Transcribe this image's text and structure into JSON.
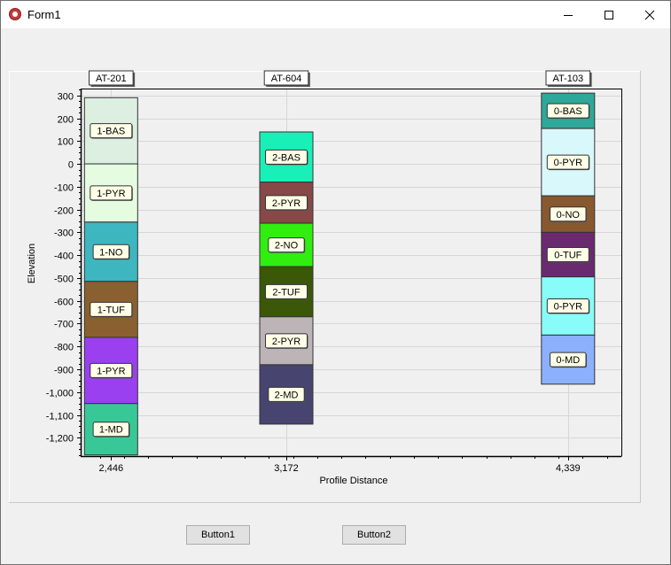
{
  "window": {
    "title": "Form1"
  },
  "buttons": {
    "button1": "Button1",
    "button2": "Button2"
  },
  "chart_data": {
    "type": "bar",
    "xlabel": "Profile Distance",
    "ylabel": "Elevation",
    "ylim": [
      -1280,
      330
    ],
    "yticks": [
      300,
      200,
      100,
      0,
      -100,
      -200,
      -300,
      -400,
      -500,
      -600,
      -700,
      -800,
      -900,
      -1000,
      -1100,
      -1200
    ],
    "ytick_labels": [
      "300",
      "200",
      "100",
      "0",
      "-100",
      "-200",
      "-300",
      "-400",
      "-500",
      "-600",
      "-700",
      "-800",
      "-900",
      "-1,000",
      "-1,100",
      "-1,200"
    ],
    "xlim": [
      2320,
      4560
    ],
    "columns": [
      {
        "well": "AT-201",
        "distance": 2446,
        "distance_label": "2,446",
        "layers": [
          {
            "label": "1-BAS",
            "top": 290,
            "bottom": 0,
            "color": "#dcefe0"
          },
          {
            "label": "1-PYR",
            "top": 0,
            "bottom": -255,
            "color": "#e6fce0"
          },
          {
            "label": "1-NO",
            "top": -255,
            "bottom": -515,
            "color": "#3db6c0"
          },
          {
            "label": "1-TUF",
            "top": -515,
            "bottom": -760,
            "color": "#8a6030"
          },
          {
            "label": "1-PYR",
            "top": -760,
            "bottom": -1050,
            "color": "#9a40f0"
          },
          {
            "label": "1-MD",
            "top": -1050,
            "bottom": -1275,
            "color": "#38c898"
          }
        ]
      },
      {
        "well": "AT-604",
        "distance": 3172,
        "distance_label": "3,172",
        "layers": [
          {
            "label": "2-BAS",
            "top": 140,
            "bottom": -80,
            "color": "#18f0b8"
          },
          {
            "label": "2-PYR",
            "top": -80,
            "bottom": -260,
            "color": "#884848"
          },
          {
            "label": "2-NO",
            "top": -260,
            "bottom": -450,
            "color": "#30ee10"
          },
          {
            "label": "2-TUF",
            "top": -450,
            "bottom": -670,
            "color": "#3a5808"
          },
          {
            "label": "2-PYR",
            "top": -670,
            "bottom": -880,
            "color": "#bdb4b8"
          },
          {
            "label": "2-MD",
            "top": -880,
            "bottom": -1140,
            "color": "#484470"
          }
        ]
      },
      {
        "well": "AT-103",
        "distance": 4339,
        "distance_label": "4,339",
        "layers": [
          {
            "label": "0-BAS",
            "top": 310,
            "bottom": 155,
            "color": "#2ea898"
          },
          {
            "label": "0-PYR",
            "top": 155,
            "bottom": -140,
            "color": "#d8f8fc"
          },
          {
            "label": "0-NO",
            "top": -140,
            "bottom": -300,
            "color": "#885830"
          },
          {
            "label": "0-TUF",
            "top": -300,
            "bottom": -495,
            "color": "#6a2a70"
          },
          {
            "label": "0-PYR",
            "top": -495,
            "bottom": -750,
            "color": "#88fcf8"
          },
          {
            "label": "0-MD",
            "top": -750,
            "bottom": -965,
            "color": "#8cb0fc"
          }
        ]
      }
    ]
  }
}
